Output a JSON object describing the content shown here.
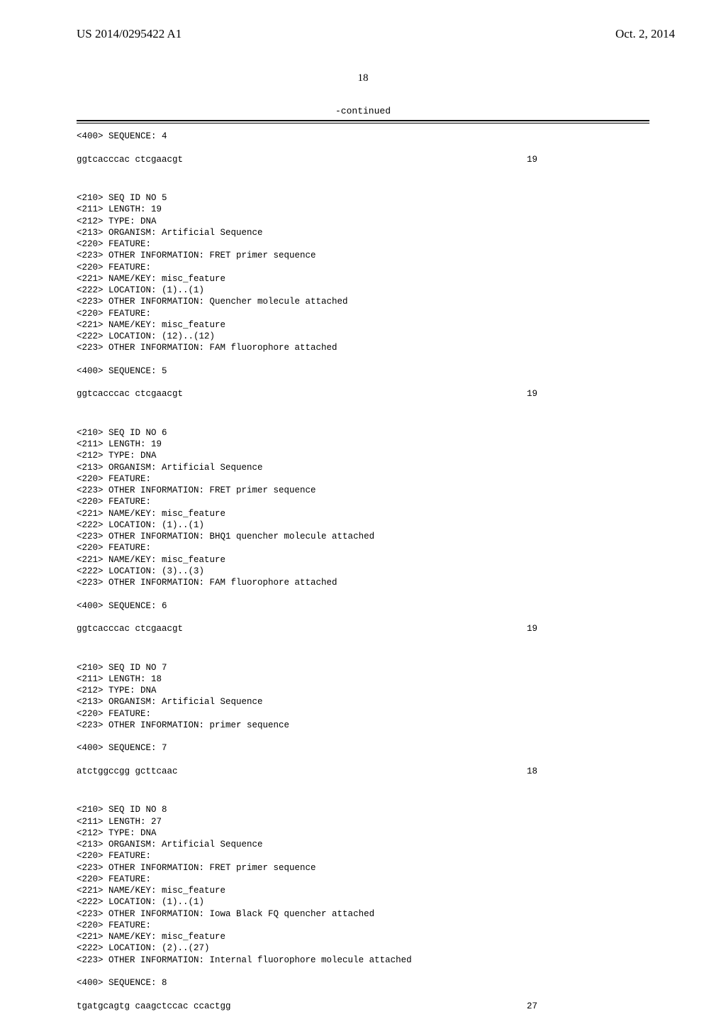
{
  "header": {
    "publication_number": "US 2014/0295422 A1",
    "publication_date": "Oct. 2, 2014"
  },
  "page_number": "18",
  "continued_label": "-continued",
  "sequences": [
    {
      "header_lines": [
        "<400> SEQUENCE: 4"
      ],
      "data": "ggtcacccac ctcgaacgt",
      "length": "19"
    },
    {
      "header_lines": [
        "<210> SEQ ID NO 5",
        "<211> LENGTH: 19",
        "<212> TYPE: DNA",
        "<213> ORGANISM: Artificial Sequence",
        "<220> FEATURE:",
        "<223> OTHER INFORMATION: FRET primer sequence",
        "<220> FEATURE:",
        "<221> NAME/KEY: misc_feature",
        "<222> LOCATION: (1)..(1)",
        "<223> OTHER INFORMATION: Quencher molecule attached",
        "<220> FEATURE:",
        "<221> NAME/KEY: misc_feature",
        "<222> LOCATION: (12)..(12)",
        "<223> OTHER INFORMATION: FAM fluorophore attached",
        "",
        "<400> SEQUENCE: 5"
      ],
      "data": "ggtcacccac ctcgaacgt",
      "length": "19"
    },
    {
      "header_lines": [
        "<210> SEQ ID NO 6",
        "<211> LENGTH: 19",
        "<212> TYPE: DNA",
        "<213> ORGANISM: Artificial Sequence",
        "<220> FEATURE:",
        "<223> OTHER INFORMATION: FRET primer sequence",
        "<220> FEATURE:",
        "<221> NAME/KEY: misc_feature",
        "<222> LOCATION: (1)..(1)",
        "<223> OTHER INFORMATION: BHQ1 quencher molecule attached",
        "<220> FEATURE:",
        "<221> NAME/KEY: misc_feature",
        "<222> LOCATION: (3)..(3)",
        "<223> OTHER INFORMATION: FAM fluorophore attached",
        "",
        "<400> SEQUENCE: 6"
      ],
      "data": "ggtcacccac ctcgaacgt",
      "length": "19"
    },
    {
      "header_lines": [
        "<210> SEQ ID NO 7",
        "<211> LENGTH: 18",
        "<212> TYPE: DNA",
        "<213> ORGANISM: Artificial Sequence",
        "<220> FEATURE:",
        "<223> OTHER INFORMATION: primer sequence",
        "",
        "<400> SEQUENCE: 7"
      ],
      "data": "atctggccgg gcttcaac",
      "length": "18"
    },
    {
      "header_lines": [
        "<210> SEQ ID NO 8",
        "<211> LENGTH: 27",
        "<212> TYPE: DNA",
        "<213> ORGANISM: Artificial Sequence",
        "<220> FEATURE:",
        "<223> OTHER INFORMATION: FRET primer sequence",
        "<220> FEATURE:",
        "<221> NAME/KEY: misc_feature",
        "<222> LOCATION: (1)..(1)",
        "<223> OTHER INFORMATION: Iowa Black FQ quencher attached",
        "<220> FEATURE:",
        "<221> NAME/KEY: misc_feature",
        "<222> LOCATION: (2)..(27)",
        "<223> OTHER INFORMATION: Internal fluorophore molecule attached",
        "",
        "<400> SEQUENCE: 8"
      ],
      "data": "tgatgcagtg caagctccac ccactgg",
      "length": "27"
    }
  ]
}
